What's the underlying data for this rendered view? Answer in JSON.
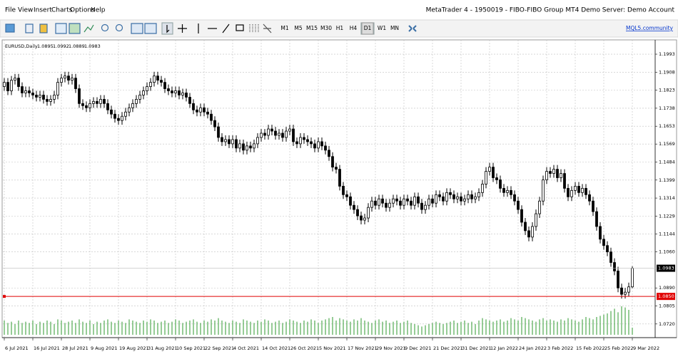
{
  "menu": [
    "File",
    "View",
    "Insert",
    "Charts",
    "Options",
    "Help"
  ],
  "window_title": "MetaTrader 4 - 1950019 - FIBO-FIBO Group MT4 Demo Server: Demo Account",
  "toolbar": {
    "timeframes": [
      "M1",
      "M5",
      "M15",
      "M30",
      "H1",
      "H4",
      "D1",
      "W1",
      "MN"
    ],
    "active": "D1",
    "link": "MQL5.community"
  },
  "chart_data": {
    "type": "candlestick",
    "symbol": "EURUSD,Daily",
    "categories": [
      "6 Jul 2021",
      null,
      null,
      null,
      null,
      null,
      null,
      null,
      "16 Jul 2021",
      null,
      null,
      null,
      null,
      null,
      null,
      null,
      "28 Jul 2021",
      null,
      null,
      null,
      null,
      null,
      null,
      null,
      "9 Aug 2021",
      null,
      null,
      null,
      null,
      null,
      null,
      null,
      "19 Aug 2021",
      null,
      null,
      null,
      null,
      null,
      null,
      null,
      "31 Aug 2021",
      null,
      null,
      null,
      null,
      null,
      null,
      null,
      "10 Sep 2021",
      null,
      null,
      null,
      null,
      null,
      null,
      null,
      "22 Sep 2021",
      null,
      null,
      null,
      null,
      null,
      null,
      null,
      "4 Oct 2021",
      null,
      null,
      null,
      null,
      null,
      null,
      null,
      "14 Oct 2021",
      null,
      null,
      null,
      null,
      null,
      null,
      null,
      "26 Oct 2021",
      null,
      null,
      null,
      null,
      null,
      null,
      null,
      "5 Nov 2021",
      null,
      null,
      null,
      null,
      null,
      null,
      null,
      "17 Nov 2021",
      null,
      null,
      null,
      null,
      null,
      null,
      null,
      "29 Nov 2021",
      null,
      null,
      null,
      null,
      null,
      null,
      null,
      "9 Dec 2021",
      null,
      null,
      null,
      null,
      null,
      null,
      null,
      "21 Dec 2021",
      null,
      null,
      null,
      null,
      null,
      null,
      null,
      "31 Dec 2021",
      null,
      null,
      null,
      null,
      null,
      null,
      null,
      "12 Jan 2022",
      null,
      null,
      null,
      null,
      null,
      null,
      null,
      "24 Jan 2022",
      null,
      null,
      null,
      null,
      null,
      null,
      null,
      "3 Feb 2022",
      null,
      null,
      null,
      null,
      null,
      null,
      null,
      "15 Feb 2022",
      null,
      null,
      null,
      null,
      null,
      null,
      null,
      "25 Feb 2022",
      null,
      null,
      null,
      null,
      null,
      null,
      null,
      "9 Mar 2022"
    ],
    "open": [
      1.184,
      1.186,
      1.182,
      1.187,
      1.188,
      1.184,
      1.181,
      1.182,
      1.181,
      1.18,
      1.179,
      1.18,
      1.178,
      1.177,
      1.178,
      1.18,
      1.186,
      1.188,
      1.189,
      1.187,
      1.188,
      1.183,
      1.176,
      1.175,
      1.174,
      1.176,
      1.177,
      1.176,
      1.178,
      1.176,
      1.173,
      1.171,
      1.169,
      1.168,
      1.17,
      1.172,
      1.174,
      1.176,
      1.178,
      1.18,
      1.182,
      1.184,
      1.186,
      1.189,
      1.187,
      1.186,
      1.183,
      1.182,
      1.181,
      1.182,
      1.18,
      1.181,
      1.179,
      1.176,
      1.173,
      1.172,
      1.174,
      1.172,
      1.171,
      1.168,
      1.165,
      1.16,
      1.158,
      1.159,
      1.157,
      1.159,
      1.155,
      1.157,
      1.154,
      1.156,
      1.155,
      1.157,
      1.16,
      1.162,
      1.161,
      1.164,
      1.163,
      1.161,
      1.162,
      1.16,
      1.163,
      1.164,
      1.158,
      1.157,
      1.16,
      1.159,
      1.158,
      1.157,
      1.155,
      1.158,
      1.156,
      1.154,
      1.151,
      1.146,
      1.145,
      1.137,
      1.133,
      1.132,
      1.128,
      1.126,
      1.123,
      1.121,
      1.122,
      1.127,
      1.13,
      1.128,
      1.131,
      1.129,
      1.127,
      1.129,
      1.131,
      1.13,
      1.128,
      1.131,
      1.13,
      1.128,
      1.132,
      1.129,
      1.126,
      1.128,
      1.131,
      1.129,
      1.133,
      1.132,
      1.13,
      1.134,
      1.133,
      1.131,
      1.132,
      1.13,
      1.131,
      1.133,
      1.131,
      1.132,
      1.134,
      1.138,
      1.144,
      1.146,
      1.141,
      1.14,
      1.136,
      1.134,
      1.135,
      1.133,
      1.13,
      1.126,
      1.12,
      1.116,
      1.113,
      1.118,
      1.124,
      1.13,
      1.14,
      1.144,
      1.143,
      1.145,
      1.141,
      1.143,
      1.136,
      1.132,
      1.135,
      1.137,
      1.134,
      1.136,
      1.133,
      1.13,
      1.125,
      1.118,
      1.112,
      1.109,
      1.106,
      1.101,
      1.097,
      1.089,
      1.086,
      1.087,
      1.0895
    ],
    "high": [
      1.188,
      1.188,
      1.189,
      1.19,
      1.19,
      1.186,
      1.184,
      1.184,
      1.183,
      1.182,
      1.182,
      1.182,
      1.18,
      1.18,
      1.182,
      1.188,
      1.19,
      1.191,
      1.191,
      1.19,
      1.19,
      1.185,
      1.178,
      1.177,
      1.178,
      1.179,
      1.179,
      1.18,
      1.18,
      1.178,
      1.175,
      1.173,
      1.171,
      1.172,
      1.174,
      1.176,
      1.178,
      1.18,
      1.182,
      1.184,
      1.186,
      1.188,
      1.191,
      1.191,
      1.189,
      1.188,
      1.185,
      1.184,
      1.184,
      1.184,
      1.183,
      1.183,
      1.181,
      1.178,
      1.175,
      1.176,
      1.176,
      1.174,
      1.173,
      1.17,
      1.167,
      1.162,
      1.161,
      1.161,
      1.161,
      1.161,
      1.159,
      1.159,
      1.158,
      1.158,
      1.159,
      1.162,
      1.164,
      1.164,
      1.166,
      1.166,
      1.165,
      1.164,
      1.164,
      1.165,
      1.166,
      1.166,
      1.16,
      1.162,
      1.162,
      1.161,
      1.16,
      1.159,
      1.16,
      1.16,
      1.158,
      1.156,
      1.153,
      1.148,
      1.147,
      1.139,
      1.135,
      1.134,
      1.13,
      1.128,
      1.125,
      1.124,
      1.129,
      1.132,
      1.132,
      1.133,
      1.133,
      1.131,
      1.131,
      1.133,
      1.133,
      1.132,
      1.133,
      1.133,
      1.132,
      1.134,
      1.134,
      1.131,
      1.13,
      1.133,
      1.133,
      1.135,
      1.135,
      1.134,
      1.136,
      1.136,
      1.135,
      1.134,
      1.134,
      1.133,
      1.135,
      1.135,
      1.134,
      1.136,
      1.14,
      1.146,
      1.148,
      1.148,
      1.143,
      1.142,
      1.138,
      1.137,
      1.137,
      1.135,
      1.132,
      1.128,
      1.122,
      1.118,
      1.12,
      1.126,
      1.132,
      1.142,
      1.146,
      1.146,
      1.147,
      1.147,
      1.145,
      1.145,
      1.138,
      1.137,
      1.139,
      1.139,
      1.138,
      1.138,
      1.135,
      1.132,
      1.127,
      1.12,
      1.114,
      1.111,
      1.108,
      1.103,
      1.099,
      1.091,
      1.089,
      1.0915,
      1.0992
    ],
    "low": [
      1.182,
      1.18,
      1.18,
      1.185,
      1.182,
      1.179,
      1.179,
      1.179,
      1.178,
      1.177,
      1.177,
      1.176,
      1.175,
      1.175,
      1.176,
      1.178,
      1.184,
      1.186,
      1.185,
      1.185,
      1.181,
      1.174,
      1.173,
      1.172,
      1.172,
      1.174,
      1.174,
      1.174,
      1.174,
      1.171,
      1.169,
      1.167,
      1.166,
      1.166,
      1.168,
      1.17,
      1.172,
      1.174,
      1.176,
      1.178,
      1.18,
      1.182,
      1.184,
      1.185,
      1.184,
      1.181,
      1.18,
      1.179,
      1.179,
      1.178,
      1.178,
      1.177,
      1.174,
      1.171,
      1.17,
      1.17,
      1.17,
      1.169,
      1.166,
      1.163,
      1.158,
      1.156,
      1.156,
      1.155,
      1.155,
      1.153,
      1.153,
      1.152,
      1.152,
      1.153,
      1.153,
      1.155,
      1.158,
      1.159,
      1.159,
      1.161,
      1.159,
      1.159,
      1.158,
      1.158,
      1.161,
      1.156,
      1.155,
      1.155,
      1.157,
      1.156,
      1.155,
      1.153,
      1.153,
      1.154,
      1.152,
      1.149,
      1.144,
      1.143,
      1.135,
      1.131,
      1.13,
      1.126,
      1.124,
      1.121,
      1.119,
      1.119,
      1.12,
      1.125,
      1.126,
      1.126,
      1.127,
      1.125,
      1.125,
      1.127,
      1.128,
      1.126,
      1.126,
      1.128,
      1.126,
      1.126,
      1.127,
      1.124,
      1.124,
      1.126,
      1.127,
      1.127,
      1.13,
      1.128,
      1.128,
      1.131,
      1.129,
      1.129,
      1.128,
      1.128,
      1.129,
      1.129,
      1.129,
      1.13,
      1.132,
      1.136,
      1.142,
      1.139,
      1.138,
      1.134,
      1.132,
      1.132,
      1.131,
      1.128,
      1.124,
      1.118,
      1.114,
      1.111,
      1.111,
      1.116,
      1.122,
      1.128,
      1.138,
      1.141,
      1.141,
      1.139,
      1.139,
      1.134,
      1.13,
      1.13,
      1.133,
      1.132,
      1.132,
      1.131,
      1.128,
      1.123,
      1.116,
      1.11,
      1.107,
      1.104,
      1.099,
      1.095,
      1.087,
      1.084,
      1.084,
      1.085,
      1.0889
    ],
    "close": [
      1.186,
      1.182,
      1.187,
      1.188,
      1.184,
      1.181,
      1.182,
      1.181,
      1.18,
      1.179,
      1.18,
      1.178,
      1.177,
      1.178,
      1.18,
      1.186,
      1.188,
      1.189,
      1.187,
      1.188,
      1.183,
      1.176,
      1.175,
      1.174,
      1.176,
      1.177,
      1.176,
      1.178,
      1.176,
      1.173,
      1.171,
      1.169,
      1.168,
      1.17,
      1.172,
      1.174,
      1.176,
      1.178,
      1.18,
      1.182,
      1.184,
      1.186,
      1.189,
      1.187,
      1.186,
      1.183,
      1.182,
      1.181,
      1.182,
      1.18,
      1.181,
      1.179,
      1.176,
      1.173,
      1.172,
      1.174,
      1.172,
      1.171,
      1.168,
      1.165,
      1.16,
      1.158,
      1.159,
      1.157,
      1.159,
      1.155,
      1.157,
      1.154,
      1.156,
      1.155,
      1.157,
      1.16,
      1.162,
      1.161,
      1.164,
      1.163,
      1.161,
      1.162,
      1.16,
      1.163,
      1.164,
      1.158,
      1.157,
      1.16,
      1.159,
      1.158,
      1.157,
      1.155,
      1.158,
      1.156,
      1.154,
      1.151,
      1.146,
      1.145,
      1.137,
      1.133,
      1.132,
      1.128,
      1.126,
      1.123,
      1.121,
      1.122,
      1.127,
      1.13,
      1.128,
      1.131,
      1.129,
      1.127,
      1.129,
      1.131,
      1.13,
      1.128,
      1.131,
      1.13,
      1.128,
      1.132,
      1.129,
      1.126,
      1.128,
      1.131,
      1.129,
      1.133,
      1.132,
      1.13,
      1.134,
      1.133,
      1.131,
      1.132,
      1.13,
      1.131,
      1.133,
      1.131,
      1.132,
      1.134,
      1.138,
      1.144,
      1.146,
      1.141,
      1.14,
      1.136,
      1.134,
      1.135,
      1.133,
      1.13,
      1.126,
      1.12,
      1.116,
      1.113,
      1.118,
      1.124,
      1.13,
      1.14,
      1.144,
      1.143,
      1.145,
      1.141,
      1.143,
      1.136,
      1.132,
      1.135,
      1.137,
      1.134,
      1.136,
      1.133,
      1.13,
      1.125,
      1.118,
      1.112,
      1.109,
      1.106,
      1.101,
      1.097,
      1.089,
      1.086,
      1.087,
      1.0895,
      1.0983
    ],
    "volume": [
      12,
      10,
      11,
      9,
      12,
      10,
      11,
      10,
      12,
      9,
      11,
      10,
      12,
      11,
      9,
      13,
      12,
      10,
      11,
      12,
      10,
      13,
      11,
      10,
      12,
      9,
      11,
      10,
      12,
      13,
      11,
      10,
      12,
      11,
      10,
      13,
      12,
      11,
      10,
      12,
      11,
      13,
      12,
      10,
      11,
      12,
      10,
      11,
      13,
      12,
      10,
      11,
      12,
      13,
      11,
      10,
      12,
      11,
      13,
      12,
      14,
      12,
      11,
      10,
      12,
      11,
      10,
      13,
      12,
      11,
      10,
      12,
      11,
      13,
      12,
      10,
      11,
      12,
      10,
      11,
      13,
      12,
      11,
      10,
      12,
      11,
      13,
      12,
      10,
      12,
      13,
      14,
      15,
      12,
      14,
      13,
      12,
      11,
      13,
      12,
      14,
      12,
      11,
      10,
      12,
      13,
      11,
      12,
      10,
      11,
      12,
      10,
      11,
      12,
      10,
      9,
      8,
      7,
      8,
      9,
      10,
      11,
      10,
      9,
      10,
      11,
      12,
      10,
      11,
      12,
      10,
      11,
      9,
      12,
      14,
      13,
      12,
      11,
      12,
      13,
      11,
      12,
      14,
      13,
      12,
      15,
      14,
      13,
      12,
      11,
      13,
      14,
      12,
      13,
      12,
      11,
      13,
      12,
      14,
      13,
      12,
      11,
      13,
      15,
      14,
      13,
      15,
      16,
      17,
      18,
      20,
      22,
      19,
      24,
      23,
      21,
      6
    ],
    "ylim": [
      1.0669,
      1.202
    ],
    "yticks": [
      1.1993,
      1.1908,
      1.1823,
      1.1738,
      1.1653,
      1.1569,
      1.1484,
      1.1399,
      1.1314,
      1.1229,
      1.1144,
      {
        "value": 1.106,
        "label": "1.1060"
      },
      {
        "value": 1.089,
        "label": "1.0890"
      },
      1.0805,
      {
        "value": 1.072,
        "label": "1.0720"
      }
    ],
    "price_line": {
      "value": 1.085,
      "label": "1.0850",
      "color": "#e00000"
    },
    "volume_color": "#2e9a2e",
    "grid": true
  }
}
